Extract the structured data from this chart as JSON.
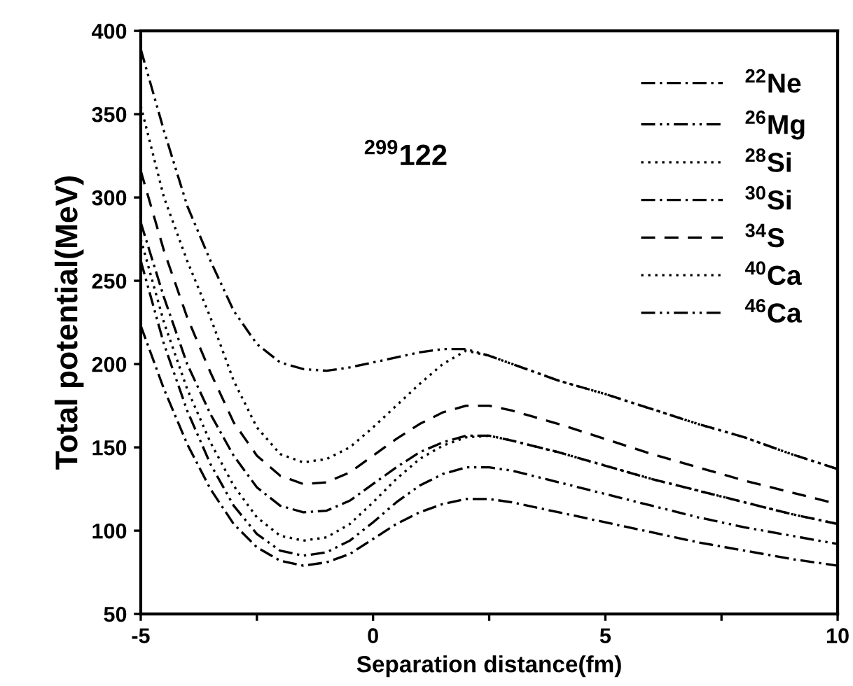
{
  "chart_data": {
    "type": "line",
    "xlabel": "Separation distance(fm)",
    "ylabel": "Total potential(MeV)",
    "annotations": [
      "$^{299}$122"
    ],
    "x": [
      -5,
      -4.5,
      -4,
      -3.5,
      -3,
      -2.5,
      -2,
      -1.5,
      -1,
      -0.5,
      0,
      0.5,
      1,
      1.5,
      2,
      2.5,
      3,
      4,
      5,
      6,
      7,
      8,
      9,
      10
    ],
    "series": [
      {
        "name": "$^{22}$Ne",
        "color": "#000000",
        "line_style": "dashdot",
        "values": [
          223,
          185,
          152,
          125,
          104,
          90,
          82,
          79,
          81,
          86,
          95,
          104,
          111,
          116,
          119,
          119,
          117,
          111,
          105,
          99,
          93,
          88,
          83,
          79
        ]
      },
      {
        "name": "$^{26}$Mg",
        "color": "#000000",
        "line_style": "dashdotdot",
        "values": [
          262,
          212,
          172,
          140,
          115,
          98,
          88,
          85,
          87,
          94,
          105,
          117,
          127,
          134,
          138,
          138,
          136,
          129,
          122,
          115,
          108,
          102,
          97,
          92
        ]
      },
      {
        "name": "$^{28}$Si",
        "color": "#000000",
        "line_style": "dotted",
        "values": [
          275,
          225,
          185,
          153,
          127,
          108,
          97,
          94,
          96,
          104,
          117,
          131,
          143,
          151,
          156,
          157,
          154,
          147,
          139,
          131,
          124,
          117,
          110,
          104
        ]
      },
      {
        "name": "$^{30}$Si",
        "color": "#000000",
        "line_style": "dashdot",
        "values": [
          285,
          240,
          200,
          170,
          145,
          126,
          115,
          111,
          112,
          118,
          128,
          138,
          147,
          153,
          157,
          157,
          154,
          147,
          139,
          131,
          124,
          117,
          110,
          104
        ]
      },
      {
        "name": "$^{34}$S",
        "color": "#000000",
        "line_style": "dashed",
        "values": [
          316,
          268,
          228,
          195,
          165,
          145,
          133,
          128,
          129,
          135,
          145,
          155,
          164,
          171,
          175,
          175,
          172,
          164,
          155,
          146,
          138,
          130,
          123,
          116
        ]
      },
      {
        "name": "$^{40}$Ca",
        "color": "#000000",
        "line_style": "dotted",
        "values": [
          355,
          300,
          262,
          228,
          190,
          162,
          146,
          141,
          143,
          150,
          162,
          175,
          188,
          200,
          208,
          205,
          200,
          190,
          182,
          173,
          164,
          156,
          146,
          137
        ]
      },
      {
        "name": "$^{46}$Ca",
        "color": "#000000",
        "line_style": "dashdotdot",
        "values": [
          389,
          340,
          295,
          262,
          232,
          212,
          201,
          197,
          196,
          198,
          201,
          204,
          207,
          209,
          209,
          205,
          200,
          190,
          182,
          173,
          164,
          156,
          146,
          137
        ]
      }
    ],
    "xlim": [
      -5,
      10
    ],
    "xticks": [
      -5,
      {
        "value": -2.5,
        "label": null
      },
      0,
      {
        "value": 2.5,
        "label": null
      },
      5,
      {
        "value": 7.5,
        "label": null
      },
      10
    ],
    "ylim": [
      50,
      400
    ],
    "yticks": [
      50,
      100,
      150,
      200,
      250,
      300,
      350,
      400
    ],
    "grid": false,
    "legend": "top right",
    "marker": "none"
  }
}
